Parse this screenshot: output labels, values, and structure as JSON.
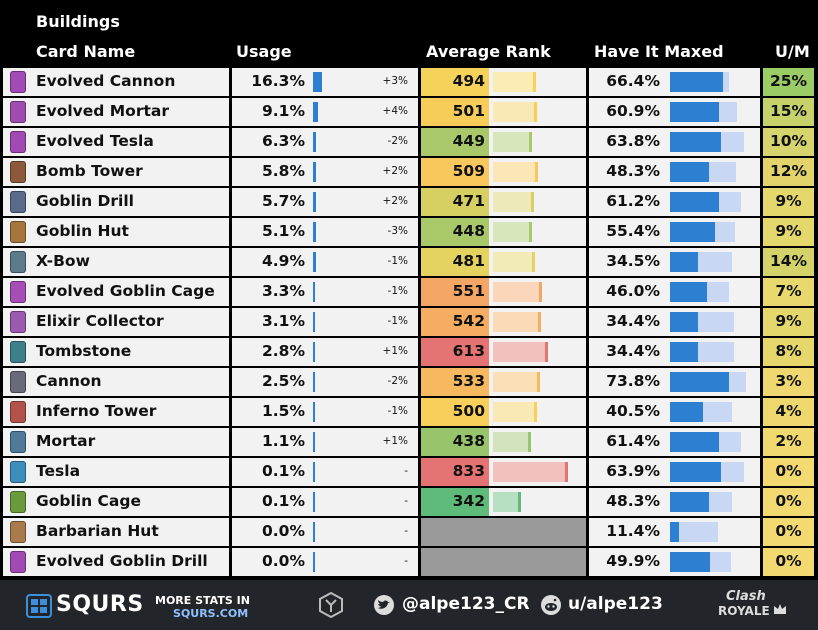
{
  "title": "Buildings",
  "headers": {
    "name": "Card Name",
    "usage": "Usage",
    "rank": "Average Rank",
    "maxed": "Have It Maxed",
    "um": "U/M"
  },
  "cards": [
    {
      "name": "Evolved Cannon",
      "usage": "16.3%",
      "usage_pct": 16.3,
      "delta": "+3%",
      "rank": 494,
      "max": "66.4%",
      "max_pct": 66.4,
      "max_track_pct": 78,
      "um": "25%",
      "um_color": "#9ccc65",
      "rank_color": "#f5d25a",
      "icon_color": "#a14bb8"
    },
    {
      "name": "Evolved Mortar",
      "usage": "9.1%",
      "usage_pct": 9.1,
      "delta": "+4%",
      "rank": 501,
      "max": "60.9%",
      "max_pct": 60.9,
      "max_track_pct": 88,
      "um": "15%",
      "um_color": "#c8d26a",
      "rank_color": "#f7cd5a",
      "icon_color": "#9e4cb0"
    },
    {
      "name": "Evolved Tesla",
      "usage": "6.3%",
      "usage_pct": 6.3,
      "delta": "-2%",
      "rank": 449,
      "max": "63.8%",
      "max_pct": 63.8,
      "max_track_pct": 97,
      "um": "10%",
      "um_color": "#d6d46c",
      "rank_color": "#a8c86a",
      "icon_color": "#a24ab4"
    },
    {
      "name": "Bomb Tower",
      "usage": "5.8%",
      "usage_pct": 5.8,
      "delta": "+2%",
      "rank": 509,
      "max": "48.3%",
      "max_pct": 48.3,
      "max_track_pct": 87,
      "um": "12%",
      "um_color": "#e2d46a",
      "rank_color": "#f8c85c",
      "icon_color": "#8c5a3a"
    },
    {
      "name": "Goblin Drill",
      "usage": "5.7%",
      "usage_pct": 5.7,
      "delta": "+2%",
      "rank": 471,
      "max": "61.2%",
      "max_pct": 61.2,
      "max_track_pct": 93,
      "um": "9%",
      "um_color": "#e4d76c",
      "rank_color": "#d6cf62",
      "icon_color": "#596a8a"
    },
    {
      "name": "Goblin Hut",
      "usage": "5.1%",
      "usage_pct": 5.1,
      "delta": "-3%",
      "rank": 448,
      "max": "55.4%",
      "max_pct": 55.4,
      "max_track_pct": 85,
      "um": "9%",
      "um_color": "#e4d76c",
      "rank_color": "#a8c86a",
      "icon_color": "#a4763c"
    },
    {
      "name": "X-Bow",
      "usage": "4.9%",
      "usage_pct": 4.9,
      "delta": "-1%",
      "rank": 481,
      "max": "34.5%",
      "max_pct": 34.5,
      "max_track_pct": 82,
      "um": "14%",
      "um_color": "#d4d36a",
      "rank_color": "#e4d35f",
      "icon_color": "#5d7a8a"
    },
    {
      "name": "Evolved Goblin Cage",
      "usage": "3.3%",
      "usage_pct": 3.3,
      "delta": "-1%",
      "rank": 551,
      "max": "46.0%",
      "max_pct": 46.0,
      "max_track_pct": 78,
      "um": "7%",
      "um_color": "#e9d86d",
      "rank_color": "#f4a665",
      "icon_color": "#a44eb6"
    },
    {
      "name": "Elixir Collector",
      "usage": "3.1%",
      "usage_pct": 3.1,
      "delta": "-1%",
      "rank": 542,
      "max": "34.4%",
      "max_pct": 34.4,
      "max_track_pct": 84,
      "um": "9%",
      "um_color": "#e4d76c",
      "rank_color": "#f5ad62",
      "icon_color": "#9b5ab0"
    },
    {
      "name": "Tombstone",
      "usage": "2.8%",
      "usage_pct": 2.8,
      "delta": "+1%",
      "rank": 613,
      "max": "34.4%",
      "max_pct": 34.4,
      "max_track_pct": 84,
      "um": "8%",
      "um_color": "#e6d76c",
      "rank_color": "#e57373",
      "icon_color": "#3e7f8a"
    },
    {
      "name": "Cannon",
      "usage": "2.5%",
      "usage_pct": 2.5,
      "delta": "-2%",
      "rank": 533,
      "max": "73.8%",
      "max_pct": 73.8,
      "max_track_pct": 100,
      "um": "3%",
      "um_color": "#efd86f",
      "rank_color": "#f6b960",
      "icon_color": "#6a6a7a"
    },
    {
      "name": "Inferno Tower",
      "usage": "1.5%",
      "usage_pct": 1.5,
      "delta": "-1%",
      "rank": 500,
      "max": "40.5%",
      "max_pct": 40.5,
      "max_track_pct": 82,
      "um": "4%",
      "um_color": "#eed86e",
      "rank_color": "#f7cf5a",
      "icon_color": "#b2524a"
    },
    {
      "name": "Mortar",
      "usage": "1.1%",
      "usage_pct": 1.1,
      "delta": "+1%",
      "rank": 438,
      "max": "61.4%",
      "max_pct": 61.4,
      "max_track_pct": 93,
      "um": "2%",
      "um_color": "#f0d96f",
      "rank_color": "#98c46c",
      "icon_color": "#4f7a9a"
    },
    {
      "name": "Tesla",
      "usage": "0.1%",
      "usage_pct": 0.1,
      "delta": "-",
      "rank": 833,
      "max": "63.9%",
      "max_pct": 63.9,
      "max_track_pct": 97,
      "um": "0%",
      "um_color": "#f2da70",
      "rank_color": "#e57373",
      "icon_color": "#3d8dbd"
    },
    {
      "name": "Goblin Cage",
      "usage": "0.1%",
      "usage_pct": 0.1,
      "delta": "-",
      "rank": 342,
      "max": "48.3%",
      "max_pct": 48.3,
      "max_track_pct": 82,
      "um": "0%",
      "um_color": "#f2da70",
      "rank_color": "#5fbb7a",
      "icon_color": "#6a9a3c"
    },
    {
      "name": "Barbarian Hut",
      "usage": "0.0%",
      "usage_pct": 0.0,
      "delta": "-",
      "rank": null,
      "max": "11.4%",
      "max_pct": 11.4,
      "max_track_pct": 63,
      "um": "0%",
      "um_color": "#f2da70",
      "rank_color": "#9a9a9a",
      "icon_color": "#a87a4c"
    },
    {
      "name": "Evolved Goblin Drill",
      "usage": "0.0%",
      "usage_pct": 0.0,
      "delta": "-",
      "rank": null,
      "max": "49.9%",
      "max_pct": 49.9,
      "max_track_pct": 80,
      "um": "0%",
      "um_color": "#f2da70",
      "rank_color": "#9a9a9a",
      "icon_color": "#a24ab4"
    }
  ],
  "footer": {
    "brand": "SQURS",
    "brand_icon": "squrs-logo-icon",
    "more_stats_line1": "MORE STATS IN",
    "more_stats_line2": "SQURS.COM",
    "twitter_handle": "@alpe123_CR",
    "reddit_handle": "u/alpe123",
    "game_line1": "Clash",
    "game_line2": "ROYALE"
  }
}
